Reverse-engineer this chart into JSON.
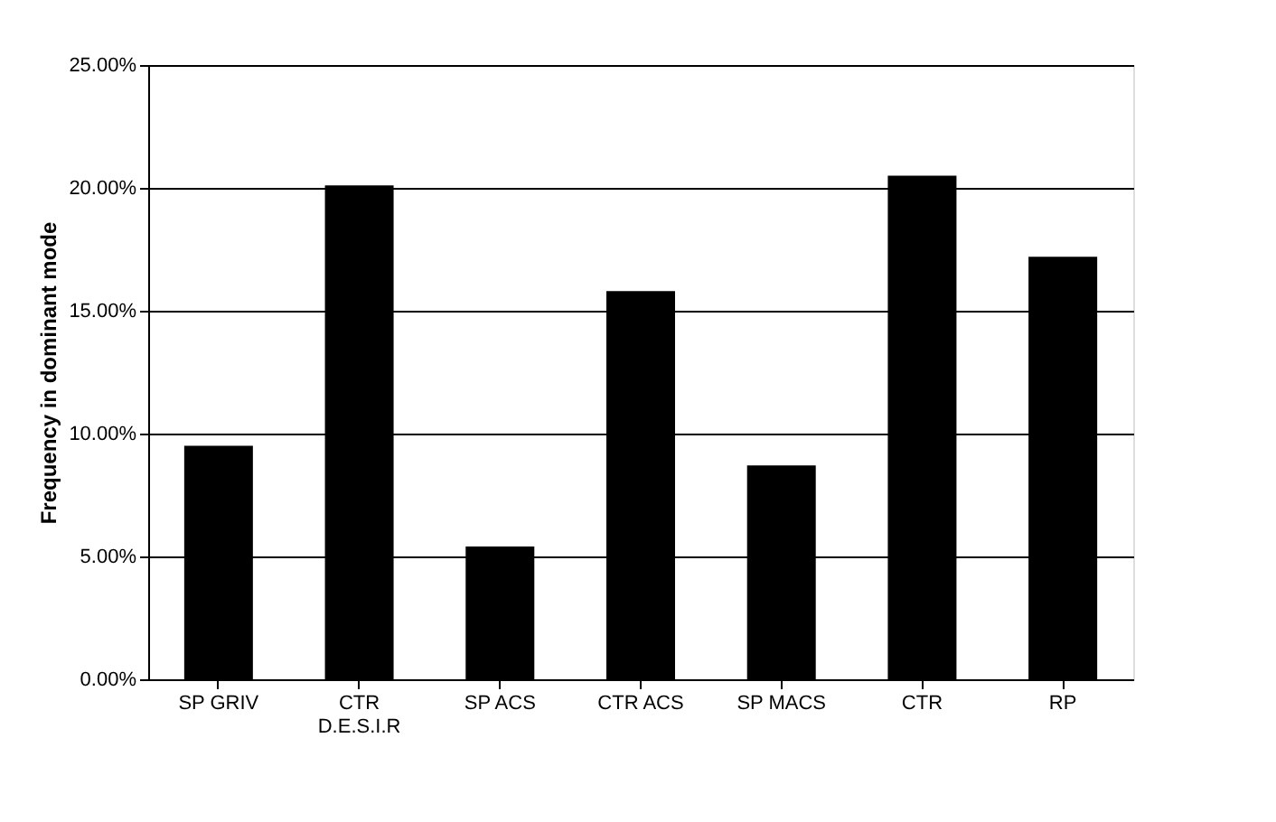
{
  "chart_data": {
    "type": "bar",
    "ylabel": "Frequency in dominant mode",
    "categories": [
      "SP GRIV",
      "CTR\nD.E.S.I.R",
      "SP ACS",
      "CTR ACS",
      "SP MACS",
      "CTR",
      "RP"
    ],
    "values": [
      9.5,
      20.1,
      5.4,
      15.8,
      8.7,
      20.5,
      17.2
    ],
    "color": "#000000",
    "ylim": [
      0,
      25
    ],
    "yticks": [
      {
        "value": 0,
        "label": "0.00%"
      },
      {
        "value": 5,
        "label": "5.00%"
      },
      {
        "value": 10,
        "label": "10.00%"
      },
      {
        "value": 15,
        "label": "15.00%"
      },
      {
        "value": 20,
        "label": "20.00%"
      },
      {
        "value": 25,
        "label": "25.00%"
      }
    ],
    "grid": "y"
  }
}
